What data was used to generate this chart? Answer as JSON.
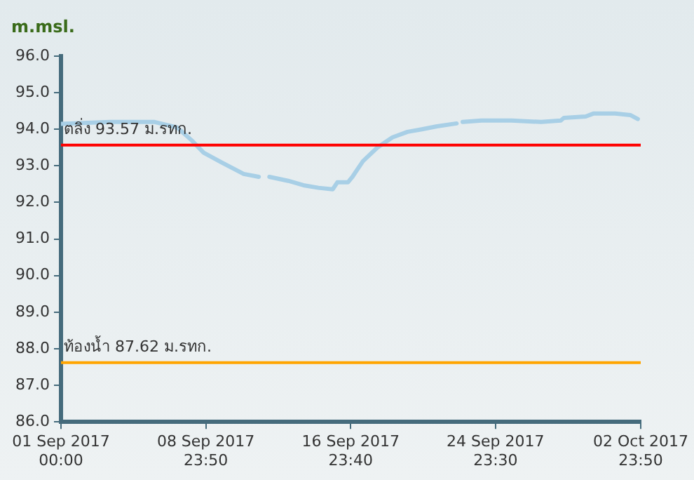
{
  "chart_data": {
    "type": "line",
    "ylabel": "m.msl.",
    "x": [
      "2017-09-01T00:00",
      "2017-09-03T17:00",
      "2017-09-06T04:00",
      "2017-09-07T10:00",
      "2017-09-08T05:00",
      "2017-09-08T21:00",
      "2017-09-09T21:00",
      "2017-09-11T02:00",
      "2017-09-11T22:00",
      "2017-09-12T05:00",
      "2017-09-12T12:00",
      "2017-09-13T13:00",
      "2017-09-14T09:00",
      "2017-09-15T05:00",
      "2017-09-16T00:00",
      "2017-09-16T06:00",
      "2017-09-16T20:00",
      "2017-09-17T02:00",
      "2017-09-17T16:00",
      "2017-09-18T11:00",
      "2017-09-19T07:00",
      "2017-09-20T03:00",
      "2017-09-20T22:00",
      "2017-09-21T18:00",
      "2017-09-22T20:00",
      "2017-09-22T23:00",
      "2017-09-23T04:00",
      "2017-09-24T05:00",
      "2017-09-25T21:00",
      "2017-09-27T12:00",
      "2017-09-28T14:00",
      "2017-09-28T18:00",
      "2017-09-29T23:00",
      "2017-09-30T09:00",
      "2017-10-01T14:00",
      "2017-10-02T10:00",
      "2017-10-02T20:00"
    ],
    "series": [
      {
        "color": "#a8cfe6",
        "values": [
          94.15,
          94.2,
          94.2,
          94.05,
          93.7,
          93.36,
          93.09,
          92.78,
          92.7,
          null,
          92.7,
          92.59,
          92.47,
          92.4,
          92.36,
          92.55,
          92.55,
          92.7,
          93.13,
          93.5,
          93.78,
          93.93,
          94.0,
          94.08,
          94.16,
          null,
          94.2,
          94.24,
          94.24,
          94.2,
          94.24,
          94.31,
          94.35,
          94.43,
          94.43,
          94.39,
          94.28
        ]
      }
    ],
    "xlim": [
      "2017-09-01T00:00",
      "2017-10-02T23:50"
    ],
    "xticks": [
      {
        "value": "2017-09-01T00:00",
        "label": "01 Sep 2017 00:00"
      },
      {
        "value": "2017-09-08T23:50",
        "label": "08 Sep 2017 23:50"
      },
      {
        "value": "2017-09-16T23:40",
        "label": "16 Sep 2017 23:40"
      },
      {
        "value": "2017-09-24T23:30",
        "label": "24 Sep 2017 23:30"
      },
      {
        "value": "2017-10-02T23:50",
        "label": "02 Oct 2017 23:50"
      }
    ],
    "ylim": [
      86,
      96
    ],
    "yticks": [
      {
        "value": 86,
        "label": "86.0"
      },
      {
        "value": 87,
        "label": "87.0"
      },
      {
        "value": 88,
        "label": "88.0"
      },
      {
        "value": 89,
        "label": "89.0"
      },
      {
        "value": 90,
        "label": "90.0"
      },
      {
        "value": 91,
        "label": "91.0"
      },
      {
        "value": 92,
        "label": "92.0"
      },
      {
        "value": 93,
        "label": "93.0"
      },
      {
        "value": 94,
        "label": "94.0"
      },
      {
        "value": 95,
        "label": "95.0"
      },
      {
        "value": 96,
        "label": "96.0"
      }
    ],
    "ref_lines": [
      {
        "axis": "y",
        "value": 93.57,
        "label": "ตลิ่ง 93.57 ม.รทก.",
        "color": "#ff0000"
      },
      {
        "axis": "y",
        "value": 87.62,
        "label": "ท้องน้ำ 87.62 ม.รทก.",
        "color": "#ffa500"
      }
    ],
    "grid": false,
    "legend": false,
    "marker": "none",
    "line_style": "solid"
  }
}
